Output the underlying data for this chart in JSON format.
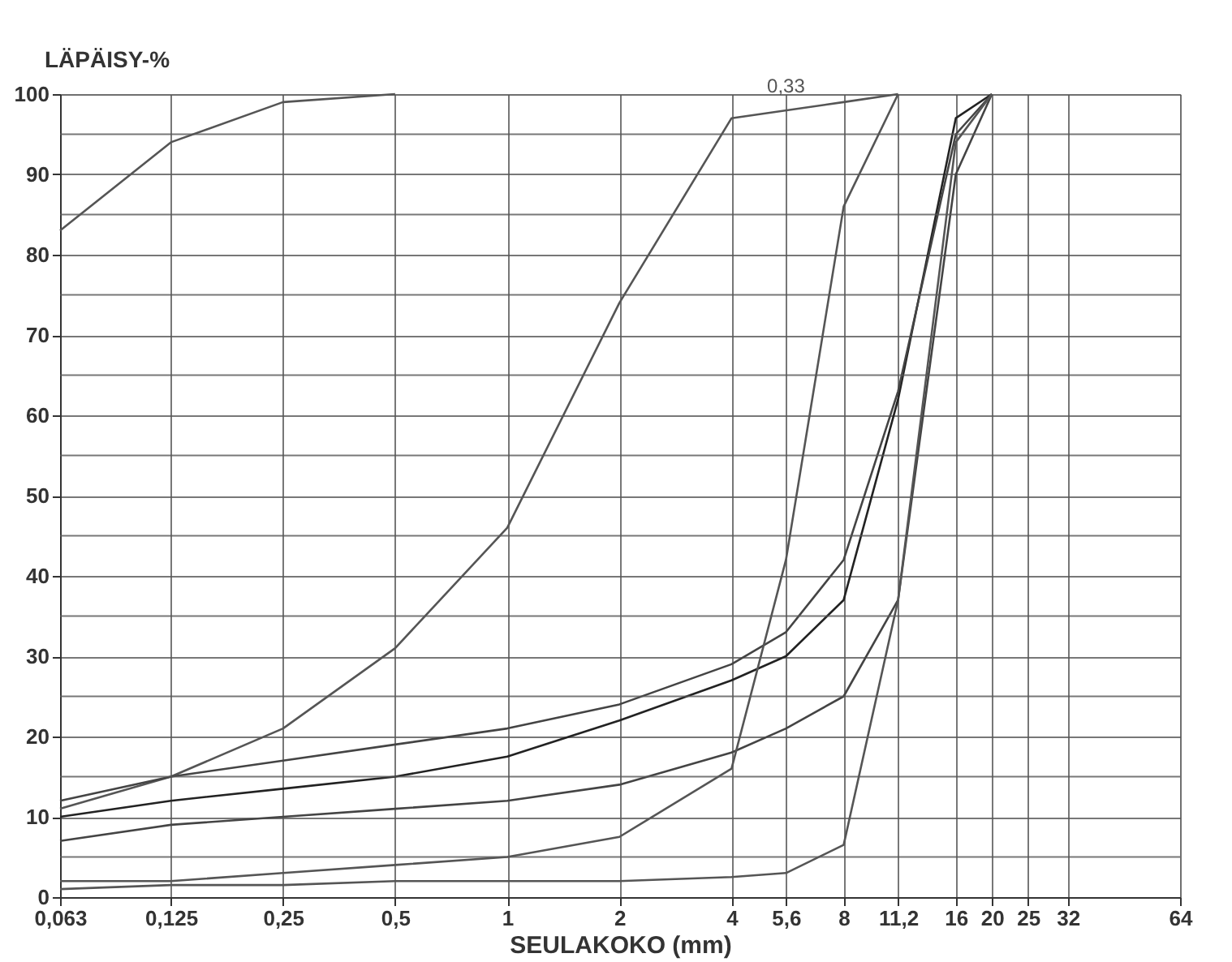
{
  "chart_data": {
    "type": "line",
    "ylabel": "LÄPÄISY-%",
    "xlabel": "SEULAKOKO (mm)",
    "log": "x",
    "grid": true,
    "legend": false,
    "marker": "none",
    "line_style": "solid",
    "xlim": [
      0.063,
      64
    ],
    "ylim": [
      0,
      100
    ],
    "xticks": [
      {
        "value": 0.063,
        "label": "0,063"
      },
      {
        "value": 0.125,
        "label": "0,125"
      },
      {
        "value": 0.25,
        "label": "0,25"
      },
      {
        "value": 0.5,
        "label": "0,5"
      },
      1,
      2,
      4,
      {
        "value": 5.6,
        "label": "5,6"
      },
      8,
      {
        "value": 11.2,
        "label": "11,2"
      },
      16,
      20,
      25,
      32,
      64
    ],
    "yticks": [
      0,
      {
        "value": 5,
        "label": null
      },
      10,
      {
        "value": 15,
        "label": null
      },
      20,
      {
        "value": 25,
        "label": null
      },
      30,
      {
        "value": 35,
        "label": null
      },
      40,
      {
        "value": 45,
        "label": null
      },
      50,
      {
        "value": 55,
        "label": null
      },
      60,
      {
        "value": 65,
        "label": null
      },
      70,
      {
        "value": 75,
        "label": null
      },
      80,
      {
        "value": 85,
        "label": null
      },
      90,
      {
        "value": 95,
        "label": null
      },
      100
    ],
    "annotations": [
      {
        "text": "0,33",
        "x": 5.6,
        "y": 99
      }
    ],
    "series": [
      {
        "color": "#555555",
        "x": [
          0.063,
          0.125,
          0.25,
          0.5
        ],
        "values": [
          83,
          94,
          99,
          100
        ]
      },
      {
        "color": "#555555",
        "x": [
          0.063,
          0.125,
          0.25,
          0.5,
          1,
          2,
          4,
          8,
          11.2
        ],
        "values": [
          11,
          15,
          21,
          31,
          46,
          74,
          97,
          99,
          100
        ]
      },
      {
        "color": "#222222",
        "x": [
          0.063,
          0.125,
          0.25,
          0.5,
          1,
          2,
          4,
          5.6,
          8,
          11.2,
          16,
          20
        ],
        "values": [
          10,
          12,
          13.5,
          15,
          17.5,
          22,
          27,
          30,
          37,
          62,
          97,
          100
        ]
      },
      {
        "color": "#444444",
        "x": [
          0.063,
          0.125,
          0.25,
          0.5,
          1,
          2,
          4,
          5.6,
          8,
          11.2,
          16,
          20
        ],
        "values": [
          12,
          15,
          17,
          19,
          21,
          24,
          29,
          33,
          42,
          63,
          95,
          100
        ]
      },
      {
        "color": "#444444",
        "x": [
          0.063,
          0.125,
          0.25,
          0.5,
          1,
          2,
          4,
          5.6,
          8,
          11.2,
          16,
          20
        ],
        "values": [
          7,
          9,
          10,
          11,
          12,
          14,
          18,
          21,
          25,
          37,
          90,
          100
        ]
      },
      {
        "color": "#555555",
        "x": [
          0.063,
          0.125,
          0.25,
          0.5,
          1,
          2,
          4,
          5.6,
          8,
          11.2
        ],
        "values": [
          2,
          2,
          3,
          4,
          5,
          7.5,
          16,
          42,
          86,
          100
        ]
      },
      {
        "color": "#555555",
        "x": [
          0.063,
          0.125,
          0.25,
          0.5,
          1,
          2,
          4,
          5.6,
          8,
          11.2,
          16,
          20
        ],
        "values": [
          1,
          1.5,
          1.5,
          2,
          2,
          2,
          2.5,
          3,
          6.5,
          37,
          94,
          100
        ]
      }
    ]
  }
}
